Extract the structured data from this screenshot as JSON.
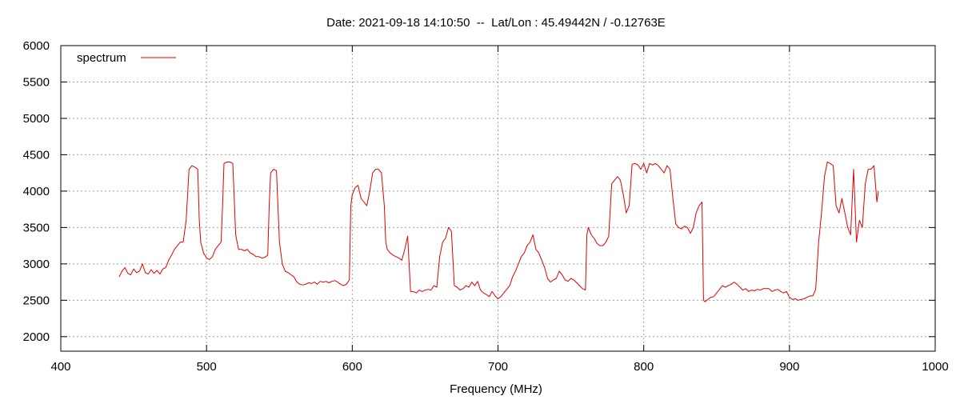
{
  "chart_data": {
    "type": "line",
    "title": "Date: 2021-09-18 14:10:50  --  Lat/Lon : 45.49442N / -0.12763E",
    "xlabel": "Frequency (MHz)",
    "ylabel": "",
    "xlim": [
      400,
      1000
    ],
    "ylim": [
      1800,
      6000
    ],
    "xticks": [
      400,
      500,
      600,
      700,
      800,
      900,
      1000
    ],
    "yticks": [
      2000,
      2500,
      3000,
      3500,
      4000,
      4500,
      5000,
      5500,
      6000
    ],
    "grid": true,
    "legend_position": "top-left",
    "series": [
      {
        "name": "spectrum",
        "color": "#e00000",
        "x": [
          440,
          442,
          444,
          446,
          448,
          450,
          452,
          454,
          456,
          458,
          460,
          462,
          464,
          466,
          468,
          470,
          472,
          474,
          476,
          478,
          480,
          482,
          484,
          486,
          487,
          488,
          490,
          492,
          494,
          495,
          496,
          498,
          500,
          502,
          504,
          506,
          508,
          510,
          511,
          512,
          514,
          516,
          518,
          519,
          520,
          522,
          524,
          526,
          528,
          530,
          532,
          534,
          536,
          538,
          540,
          542,
          543,
          544,
          546,
          548,
          549,
          550,
          552,
          554,
          556,
          558,
          560,
          562,
          564,
          566,
          568,
          570,
          572,
          574,
          576,
          578,
          580,
          582,
          584,
          586,
          588,
          590,
          592,
          594,
          596,
          598,
          599,
          600,
          602,
          604,
          606,
          608,
          610,
          612,
          614,
          616,
          618,
          620,
          622,
          623,
          624,
          626,
          628,
          630,
          632,
          634,
          636,
          638,
          639,
          640,
          642,
          644,
          646,
          648,
          650,
          652,
          654,
          656,
          658,
          660,
          662,
          664,
          666,
          668,
          669,
          670,
          672,
          674,
          676,
          678,
          680,
          682,
          684,
          686,
          688,
          690,
          692,
          694,
          696,
          698,
          700,
          702,
          704,
          706,
          708,
          710,
          712,
          714,
          716,
          718,
          720,
          722,
          724,
          726,
          728,
          730,
          732,
          734,
          736,
          738,
          740,
          742,
          744,
          746,
          748,
          750,
          752,
          754,
          756,
          758,
          760,
          761,
          762,
          764,
          766,
          768,
          770,
          772,
          774,
          776,
          778,
          780,
          782,
          784,
          786,
          788,
          790,
          792,
          794,
          796,
          798,
          800,
          802,
          804,
          806,
          808,
          810,
          812,
          814,
          816,
          818,
          820,
          822,
          824,
          826,
          828,
          830,
          832,
          834,
          836,
          838,
          840,
          841,
          842,
          844,
          846,
          848,
          850,
          852,
          854,
          856,
          858,
          860,
          862,
          864,
          866,
          868,
          870,
          872,
          874,
          876,
          878,
          880,
          882,
          884,
          886,
          888,
          890,
          892,
          894,
          896,
          898,
          900,
          902,
          904,
          906,
          908,
          910,
          912,
          914,
          916,
          918,
          920,
          921,
          922,
          924,
          926,
          928,
          930,
          932,
          934,
          936,
          938,
          940,
          942,
          944,
          946,
          948,
          950,
          952,
          954,
          956,
          958,
          960,
          961
        ],
        "values": [
          2820,
          2900,
          2950,
          2870,
          2850,
          2930,
          2880,
          2900,
          3000,
          2880,
          2860,
          2920,
          2870,
          2910,
          2860,
          2930,
          2950,
          3050,
          3120,
          3200,
          3250,
          3300,
          3300,
          3600,
          3950,
          4300,
          4350,
          4330,
          4300,
          3600,
          3300,
          3150,
          3080,
          3060,
          3100,
          3200,
          3250,
          3300,
          3800,
          4380,
          4400,
          4400,
          4380,
          3900,
          3400,
          3200,
          3200,
          3180,
          3200,
          3150,
          3130,
          3100,
          3100,
          3080,
          3090,
          3120,
          3800,
          4250,
          4300,
          4280,
          3800,
          3300,
          3000,
          2900,
          2880,
          2850,
          2820,
          2750,
          2720,
          2710,
          2720,
          2740,
          2730,
          2750,
          2720,
          2760,
          2750,
          2760,
          2740,
          2760,
          2770,
          2750,
          2720,
          2700,
          2720,
          2780,
          3800,
          3950,
          4050,
          4080,
          3900,
          3850,
          3800,
          4000,
          4250,
          4300,
          4300,
          4250,
          3800,
          3300,
          3200,
          3150,
          3120,
          3100,
          3080,
          3050,
          3200,
          3380,
          3000,
          2620,
          2620,
          2600,
          2640,
          2620,
          2640,
          2650,
          2640,
          2700,
          2680,
          3100,
          3300,
          3350,
          3500,
          3450,
          3100,
          2700,
          2680,
          2640,
          2660,
          2700,
          2680,
          2750,
          2700,
          2760,
          2640,
          2600,
          2580,
          2550,
          2620,
          2560,
          2520,
          2550,
          2600,
          2650,
          2700,
          2820,
          2900,
          3000,
          3100,
          3150,
          3250,
          3300,
          3400,
          3200,
          3150,
          3050,
          2950,
          2800,
          2750,
          2780,
          2800,
          2900,
          2850,
          2780,
          2760,
          2800,
          2780,
          2740,
          2700,
          2660,
          2640,
          3400,
          3500,
          3400,
          3350,
          3280,
          3250,
          3250,
          3300,
          3380,
          4100,
          4150,
          4200,
          4150,
          3950,
          3700,
          3800,
          4370,
          4380,
          4360,
          4300,
          4380,
          4250,
          4380,
          4360,
          4380,
          4350,
          4300,
          4250,
          4350,
          4300,
          3900,
          3550,
          3500,
          3480,
          3520,
          3500,
          3420,
          3500,
          3700,
          3800,
          3850,
          2500,
          2480,
          2510,
          2540,
          2550,
          2600,
          2650,
          2700,
          2680,
          2700,
          2720,
          2750,
          2720,
          2680,
          2640,
          2660,
          2620,
          2640,
          2630,
          2650,
          2640,
          2660,
          2660,
          2660,
          2620,
          2640,
          2650,
          2620,
          2600,
          2620,
          2540,
          2510,
          2520,
          2500,
          2510,
          2520,
          2540,
          2560,
          2560,
          2650,
          3300,
          3500,
          3700,
          4200,
          4400,
          4380,
          4350,
          3800,
          3700,
          3900,
          3700,
          3500,
          3400,
          4300,
          3300,
          3600,
          3500,
          4100,
          4300,
          4300,
          4350,
          3850,
          4000
        ]
      }
    ]
  }
}
